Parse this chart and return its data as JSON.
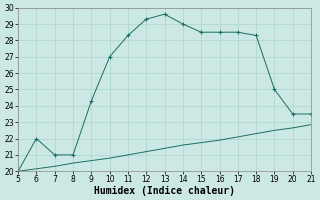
{
  "xlabel": "Humidex (Indice chaleur)",
  "background_color": "#cce8e4",
  "grid_color": "#b0d8d0",
  "line_color": "#1a6e60",
  "x": [
    5,
    6,
    7,
    8,
    9,
    10,
    11,
    12,
    13,
    14,
    15,
    16,
    17,
    18,
    19,
    20,
    21
  ],
  "y_main": [
    20,
    22,
    21,
    21,
    24.3,
    27,
    28.3,
    29.3,
    29.6,
    29,
    28.5,
    28.5,
    28.5,
    28.3,
    25,
    23.5,
    23.5
  ],
  "y_secondary": [
    20,
    20.15,
    20.3,
    20.5,
    20.65,
    20.8,
    21.0,
    21.2,
    21.4,
    21.6,
    21.75,
    21.9,
    22.1,
    22.3,
    22.5,
    22.65,
    22.85
  ],
  "xlim": [
    5,
    21
  ],
  "ylim": [
    20,
    30
  ],
  "xticks": [
    5,
    6,
    7,
    8,
    9,
    10,
    11,
    12,
    13,
    14,
    15,
    16,
    17,
    18,
    19,
    20,
    21
  ],
  "yticks": [
    20,
    21,
    22,
    23,
    24,
    25,
    26,
    27,
    28,
    29,
    30
  ],
  "xlabel_fontsize": 7,
  "tick_fontsize": 5.5
}
